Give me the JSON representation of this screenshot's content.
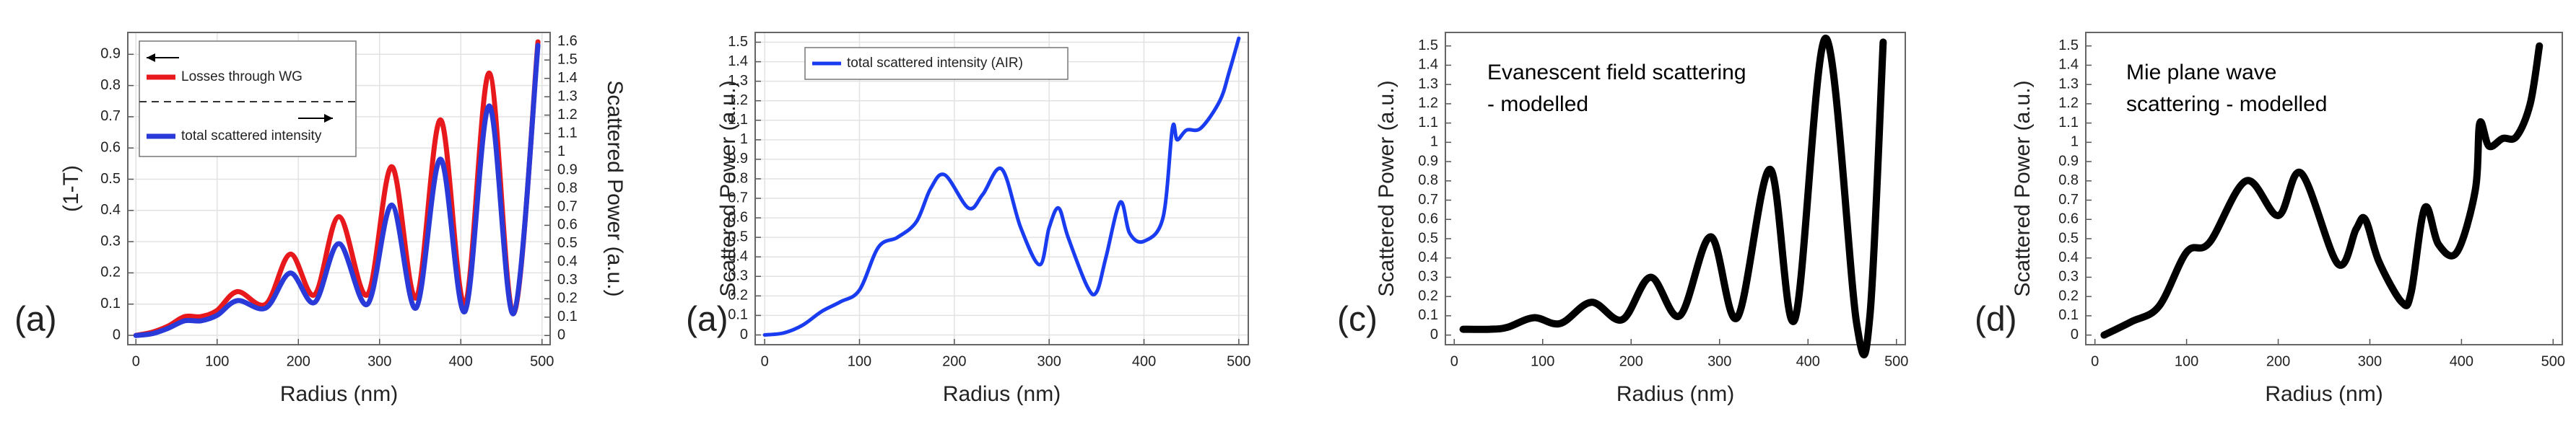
{
  "chart_data": [
    {
      "type": "line",
      "panel_label": "(a)",
      "x_label": "Radius (nm)",
      "y_label": "(1-T)",
      "y2_label": "Scattered Power (a.u.)",
      "xlim": [
        -10,
        510
      ],
      "xticks": [
        0,
        100,
        200,
        300,
        400,
        500
      ],
      "ylim": [
        -0.03,
        0.97
      ],
      "yticks": [
        0,
        0.1,
        0.2,
        0.3,
        0.4,
        0.5,
        0.6,
        0.7,
        0.8,
        0.9
      ],
      "y2lim": [
        -0.05,
        1.65
      ],
      "y2ticks": [
        0,
        0.1,
        0.2,
        0.3,
        0.4,
        0.5,
        0.6,
        0.7,
        0.8,
        0.9,
        1,
        1.1,
        1.2,
        1.3,
        1.4,
        1.5,
        1.6
      ],
      "grid": true,
      "legend": "upper left",
      "x": [
        0,
        20,
        40,
        60,
        80,
        100,
        125,
        160,
        190,
        220,
        250,
        285,
        315,
        345,
        375,
        405,
        435,
        465,
        495
      ],
      "series": [
        {
          "name": "Losses through WG",
          "color": "#e8191c",
          "values": [
            0,
            0.01,
            0.03,
            0.06,
            0.06,
            0.08,
            0.14,
            0.1,
            0.26,
            0.13,
            0.38,
            0.13,
            0.54,
            0.12,
            0.69,
            0.1,
            0.84,
            0.07,
            0.94
          ]
        },
        {
          "name": "total scattered intensity",
          "color": "#2a3ad8",
          "axis": "y2",
          "values": [
            0,
            0.01,
            0.04,
            0.08,
            0.08,
            0.11,
            0.19,
            0.15,
            0.34,
            0.18,
            0.5,
            0.17,
            0.71,
            0.15,
            0.96,
            0.13,
            1.25,
            0.12,
            1.58
          ]
        }
      ]
    },
    {
      "type": "line",
      "panel_label": "(a)",
      "x_label": "Radius (nm)",
      "y_label": "Scattered Power (a.u.)",
      "xlim": [
        -10,
        510
      ],
      "xticks": [
        0,
        100,
        200,
        300,
        400,
        500
      ],
      "ylim": [
        -0.05,
        1.55
      ],
      "yticks": [
        0,
        0.1,
        0.2,
        0.3,
        0.4,
        0.5,
        0.6,
        0.7,
        0.8,
        0.9,
        1,
        1.1,
        1.2,
        1.3,
        1.4,
        1.5
      ],
      "grid": true,
      "legend": "upper left",
      "x": [
        0,
        20,
        40,
        60,
        80,
        100,
        120,
        140,
        160,
        175,
        190,
        215,
        230,
        250,
        270,
        290,
        300,
        310,
        320,
        340,
        350,
        360,
        375,
        385,
        400,
        420,
        430,
        435,
        445,
        460,
        480,
        490,
        500
      ],
      "series": [
        {
          "name": "total scattered intensity (AIR)",
          "color": "#1a3cf0",
          "values": [
            0,
            0.01,
            0.05,
            0.12,
            0.17,
            0.23,
            0.45,
            0.5,
            0.58,
            0.75,
            0.82,
            0.65,
            0.72,
            0.85,
            0.55,
            0.36,
            0.55,
            0.65,
            0.5,
            0.25,
            0.22,
            0.4,
            0.68,
            0.52,
            0.48,
            0.6,
            1.06,
            1.0,
            1.05,
            1.06,
            1.2,
            1.35,
            1.52
          ]
        }
      ]
    },
    {
      "type": "line",
      "panel_label": "(c)",
      "x_label": "Radius (nm)",
      "y_label": "Scattered Power (a.u.)",
      "annotations": [
        "Evanescent field scattering",
        "- modelled"
      ],
      "xlim": [
        -10,
        510
      ],
      "xticks": [
        0,
        100,
        200,
        300,
        400,
        500
      ],
      "ylim": [
        -0.05,
        1.57
      ],
      "yticks": [
        0,
        0.1,
        0.2,
        0.3,
        0.4,
        0.5,
        0.6,
        0.7,
        0.8,
        0.9,
        1,
        1.1,
        1.2,
        1.3,
        1.4,
        1.5
      ],
      "grid": false,
      "x": [
        10,
        40,
        60,
        90,
        120,
        155,
        190,
        222,
        255,
        290,
        320,
        357,
        385,
        420,
        455,
        470,
        485
      ],
      "series": [
        {
          "color": "#000000",
          "values": [
            0.03,
            0.03,
            0.04,
            0.09,
            0.06,
            0.17,
            0.08,
            0.3,
            0.1,
            0.51,
            0.09,
            0.86,
            0.08,
            1.54,
            0.06,
            0.1,
            1.52
          ]
        }
      ]
    },
    {
      "type": "line",
      "panel_label": "(d)",
      "x_label": "Radius (nm)",
      "y_label": "Scattered Power (a.u.)",
      "annotations": [
        "Mie plane wave",
        "scattering  - modelled"
      ],
      "xlim": [
        -10,
        510
      ],
      "xticks": [
        0,
        100,
        200,
        300,
        400,
        500
      ],
      "ylim": [
        -0.05,
        1.57
      ],
      "yticks": [
        0,
        0.1,
        0.2,
        0.3,
        0.4,
        0.5,
        0.6,
        0.7,
        0.8,
        0.9,
        1,
        1.1,
        1.2,
        1.3,
        1.4,
        1.5
      ],
      "grid": false,
      "x": [
        10,
        40,
        70,
        100,
        125,
        165,
        200,
        225,
        265,
        285,
        295,
        310,
        335,
        345,
        360,
        375,
        395,
        415,
        420,
        430,
        445,
        460,
        475,
        485
      ],
      "series": [
        {
          "color": "#000000",
          "values": [
            0,
            0.07,
            0.15,
            0.43,
            0.48,
            0.8,
            0.62,
            0.84,
            0.37,
            0.55,
            0.6,
            0.38,
            0.17,
            0.22,
            0.66,
            0.47,
            0.43,
            0.75,
            1.1,
            0.98,
            1.02,
            1.03,
            1.2,
            1.5
          ]
        }
      ]
    }
  ]
}
